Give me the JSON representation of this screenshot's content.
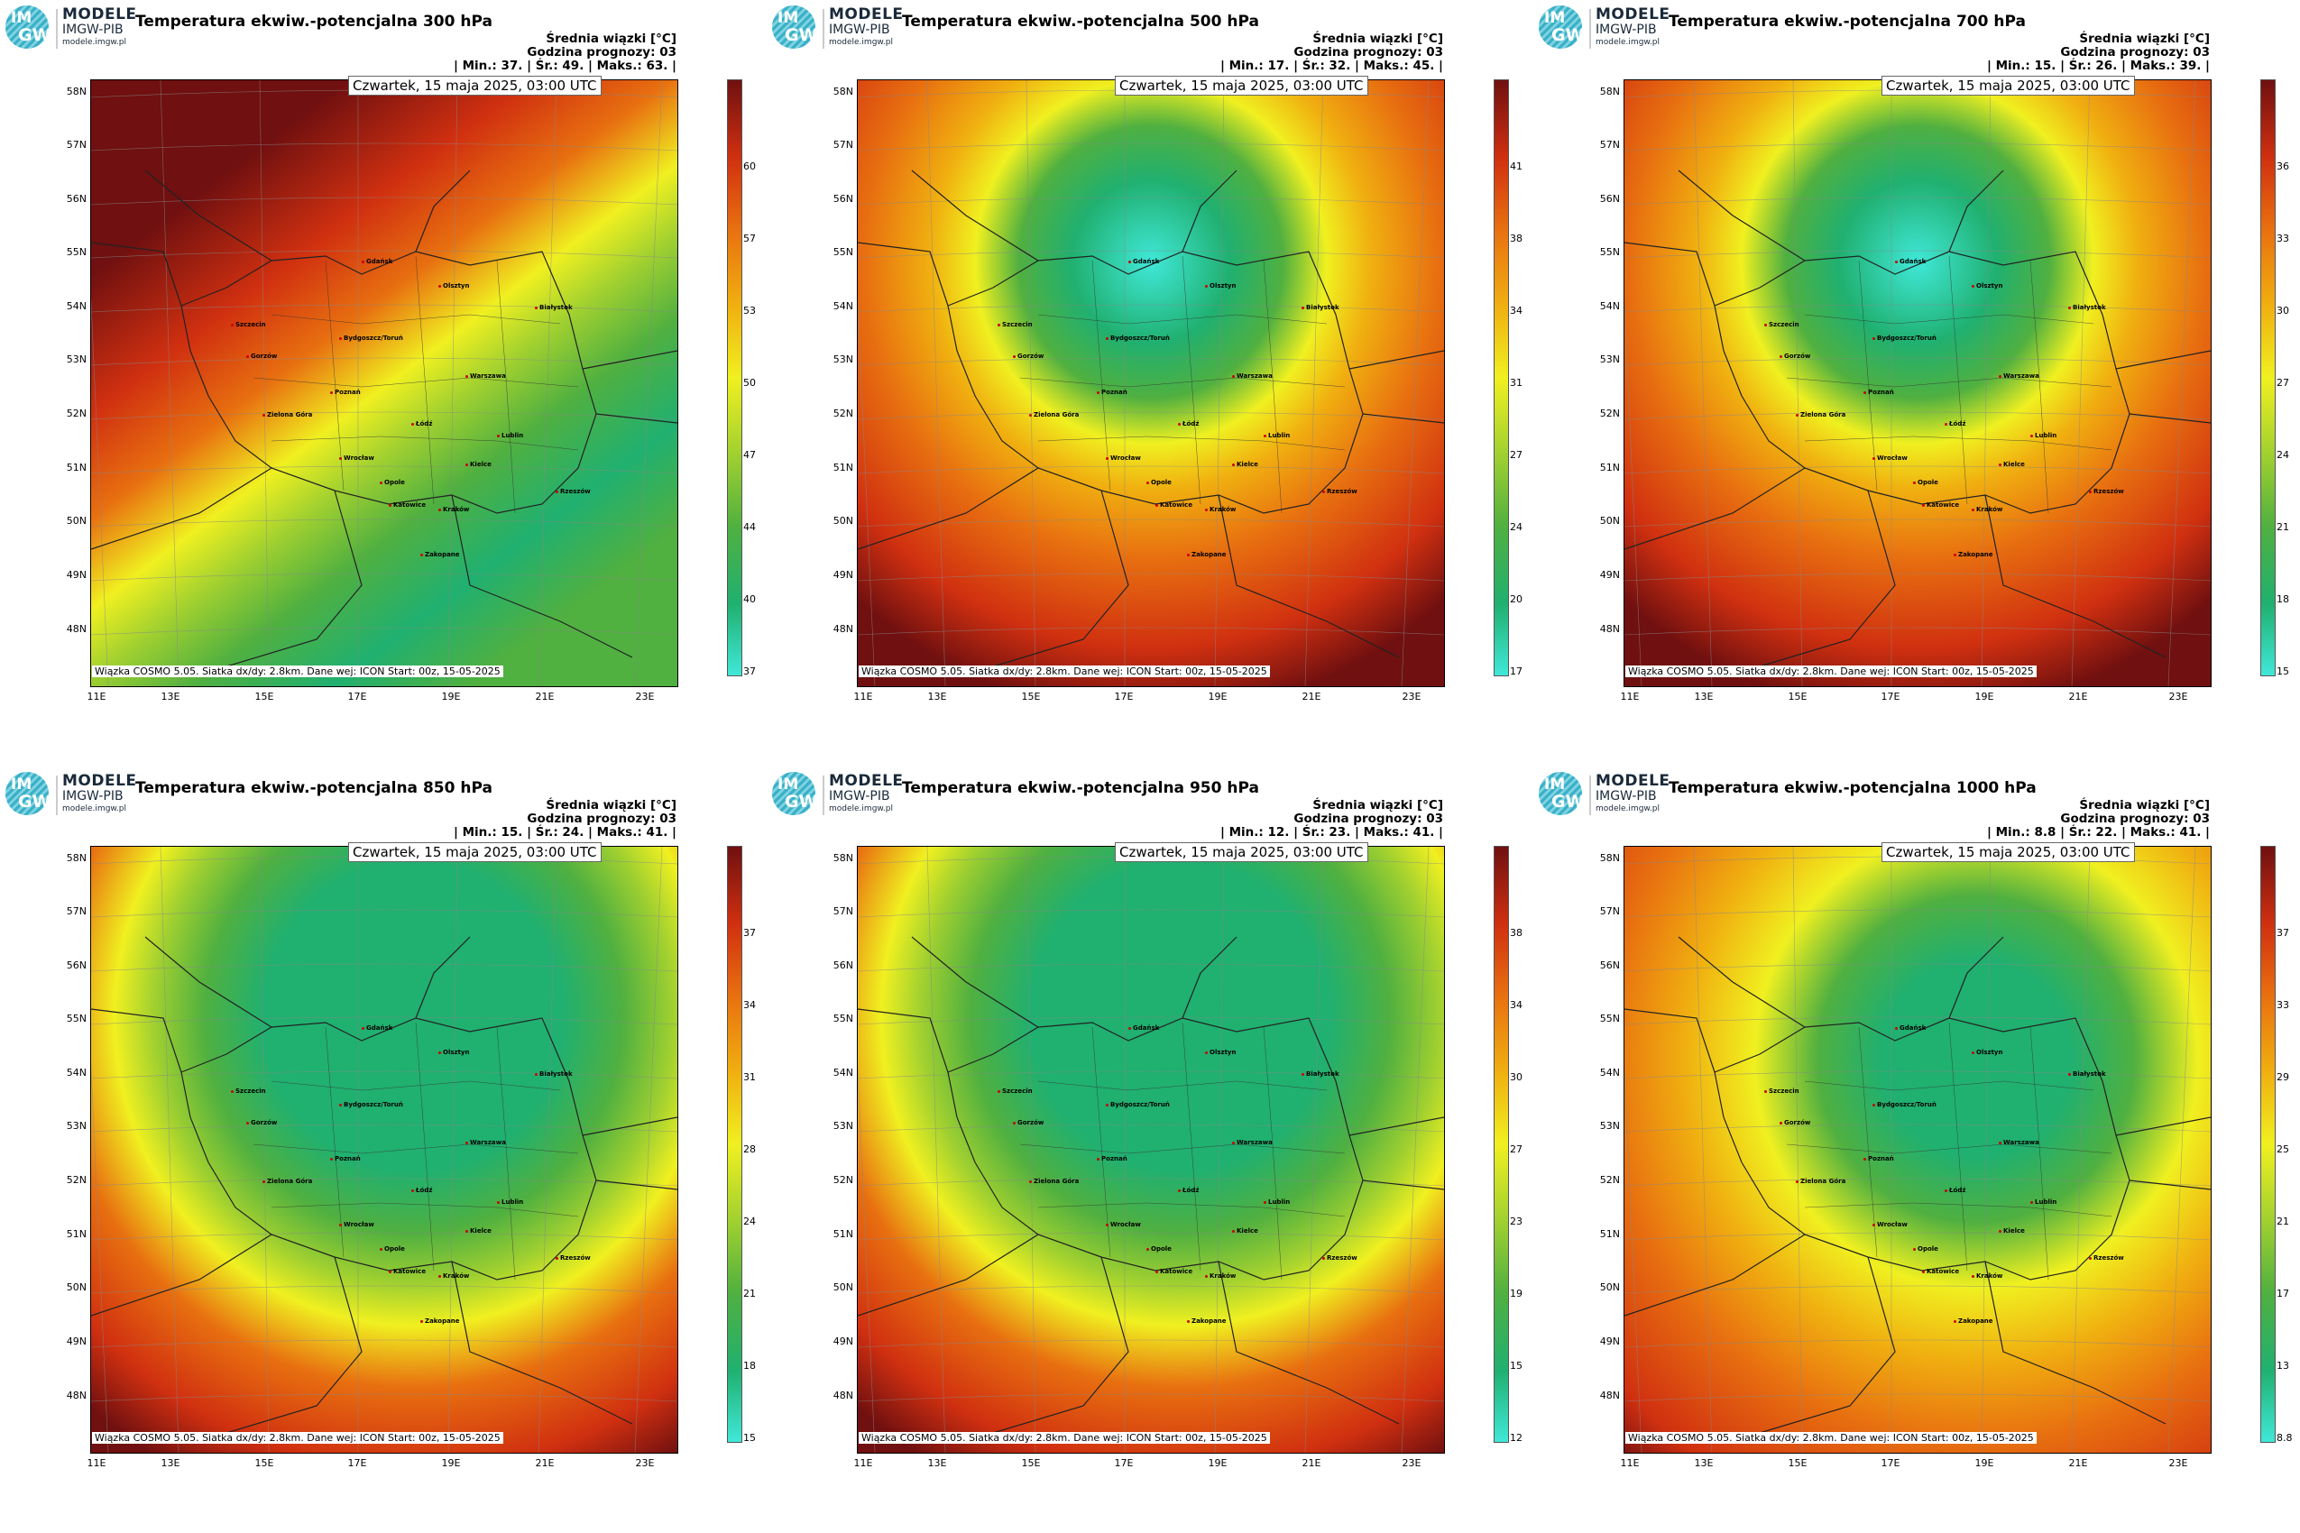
{
  "logo": {
    "mark_top": "IM",
    "mark_bottom": "GW",
    "line1": "MODELE",
    "line2": "IMGW-PIB",
    "line3": "modele.imgw.pl"
  },
  "date_label": "Czwartek, 15 maja 2025, 03:00 UTC",
  "footer": "Wiązka COSMO 5.05. Siatka dx/dy: 2.8km. Dane wej: ICON Start: 00z, 15-05-2025",
  "info_line1": "Średnia wiązki [°C]",
  "info_line2": "Godzina prognozy: 03",
  "lat_labels": [
    "58N",
    "57N",
    "56N",
    "55N",
    "54N",
    "53N",
    "52N",
    "51N",
    "50N",
    "49N",
    "48N"
  ],
  "lon_labels": [
    "11E",
    "13E",
    "15E",
    "17E",
    "19E",
    "21E",
    "23E"
  ],
  "cities": [
    "Szczecin",
    "Gdańsk",
    "Olsztyn",
    "Białystok",
    "Gorzów",
    "Bydgoszcz/Toruń",
    "Warszawa",
    "Poznań",
    "Zielona Góra",
    "Łódź",
    "Lublin",
    "Wrocław",
    "Opole",
    "Kielce",
    "Rzeszów",
    "Katowice",
    "Kraków",
    "Zakopane"
  ],
  "panels": [
    {
      "title": "Temperatura ekwiw.-potencjalna 300 hPa",
      "stats": "| Min.:      37. | Śr.:       49. | Maks.:     63. |",
      "cbar_labels": [
        "60",
        "57",
        "53",
        "50",
        "47",
        "44",
        "40",
        "37"
      ],
      "pattern": "p300",
      "colors": [
        "#40e8d8",
        "#20b070",
        "#50b040",
        "#a0d030",
        "#f0f020",
        "#f0b010",
        "#e87010",
        "#d03010",
        "#701010"
      ]
    },
    {
      "title": "Temperatura ekwiw.-potencjalna 500 hPa",
      "stats": "| Min.:      17. | Śr.:       32. | Maks.:     45. |",
      "cbar_labels": [
        "41",
        "38",
        "34",
        "31",
        "27",
        "24",
        "20",
        "17"
      ],
      "pattern": "ring",
      "colors": [
        "#40e8d8",
        "#20b070",
        "#50b040",
        "#a0d030",
        "#f0f020",
        "#f0b010",
        "#e87010",
        "#d03010",
        "#701010"
      ]
    },
    {
      "title": "Temperatura ekwiw.-potencjalna 700 hPa",
      "stats": "| Min.:      15. | Śr.:       26. | Maks.:     39. |",
      "cbar_labels": [
        "36",
        "33",
        "30",
        "27",
        "24",
        "21",
        "18",
        "15"
      ],
      "pattern": "ring",
      "colors": [
        "#40e8d8",
        "#20b070",
        "#50b040",
        "#a0d030",
        "#f0f020",
        "#f0b010",
        "#e87010",
        "#d03010",
        "#701010"
      ]
    },
    {
      "title": "Temperatura ekwiw.-potencjalna 850 hPa",
      "stats": "| Min.:      15. | Śr.:       24. | Maks.:     41. |",
      "cbar_labels": [
        "37",
        "34",
        "31",
        "28",
        "24",
        "21",
        "18",
        "15"
      ],
      "pattern": "low",
      "colors": [
        "#40e8d8",
        "#20b070",
        "#50b040",
        "#a0d030",
        "#f0f020",
        "#f0b010",
        "#e87010",
        "#d03010",
        "#701010"
      ]
    },
    {
      "title": "Temperatura ekwiw.-potencjalna 950 hPa",
      "stats": "| Min.:      12. | Śr.:       23. | Maks.:     41. |",
      "cbar_labels": [
        "38",
        "34",
        "30",
        "27",
        "23",
        "19",
        "15",
        "12"
      ],
      "pattern": "low",
      "colors": [
        "#40e8d8",
        "#20b070",
        "#50b040",
        "#a0d030",
        "#f0f020",
        "#f0b010",
        "#e87010",
        "#d03010",
        "#701010"
      ]
    },
    {
      "title": "Temperatura ekwiw.-potencjalna 1000 hPa",
      "stats": "| Min.:      8.8 | Śr.:       22. | Maks.:     41. |",
      "cbar_labels": [
        "37",
        "33",
        "29",
        "25",
        "21",
        "17",
        "13",
        "8.8"
      ],
      "pattern": "p1000",
      "colors": [
        "#40e8d8",
        "#20b070",
        "#50b040",
        "#a0d030",
        "#f0f020",
        "#f0b010",
        "#e87010",
        "#d03010",
        "#701010"
      ]
    }
  ]
}
